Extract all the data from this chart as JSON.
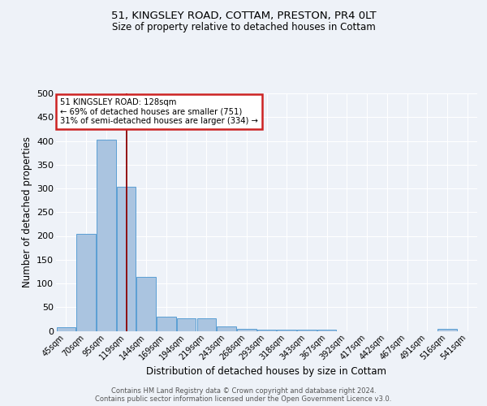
{
  "title1": "51, KINGSLEY ROAD, COTTAM, PRESTON, PR4 0LT",
  "title2": "Size of property relative to detached houses in Cottam",
  "xlabel": "Distribution of detached houses by size in Cottam",
  "ylabel": "Number of detached properties",
  "categories": [
    "45sqm",
    "70sqm",
    "95sqm",
    "119sqm",
    "144sqm",
    "169sqm",
    "194sqm",
    "219sqm",
    "243sqm",
    "268sqm",
    "293sqm",
    "318sqm",
    "343sqm",
    "367sqm",
    "392sqm",
    "417sqm",
    "442sqm",
    "467sqm",
    "491sqm",
    "516sqm",
    "541sqm"
  ],
  "values": [
    8,
    204,
    403,
    303,
    113,
    30,
    27,
    27,
    9,
    5,
    2,
    2,
    2,
    3,
    0,
    0,
    0,
    0,
    0,
    4,
    0
  ],
  "bar_color": "#aac4e0",
  "bar_edge_color": "#5a9fd4",
  "vline_color": "#8b0000",
  "vline_x_index": 3.5,
  "annotation_lines": [
    "51 KINGSLEY ROAD: 128sqm",
    "← 69% of detached houses are smaller (751)",
    "31% of semi-detached houses are larger (334) →"
  ],
  "footer_line1": "Contains HM Land Registry data © Crown copyright and database right 2024.",
  "footer_line2": "Contains public sector information licensed under the Open Government Licence v3.0.",
  "bg_color": "#eef2f8",
  "plot_bg_color": "#eef2f8",
  "ylim": [
    0,
    500
  ],
  "yticks": [
    0,
    50,
    100,
    150,
    200,
    250,
    300,
    350,
    400,
    450,
    500
  ]
}
